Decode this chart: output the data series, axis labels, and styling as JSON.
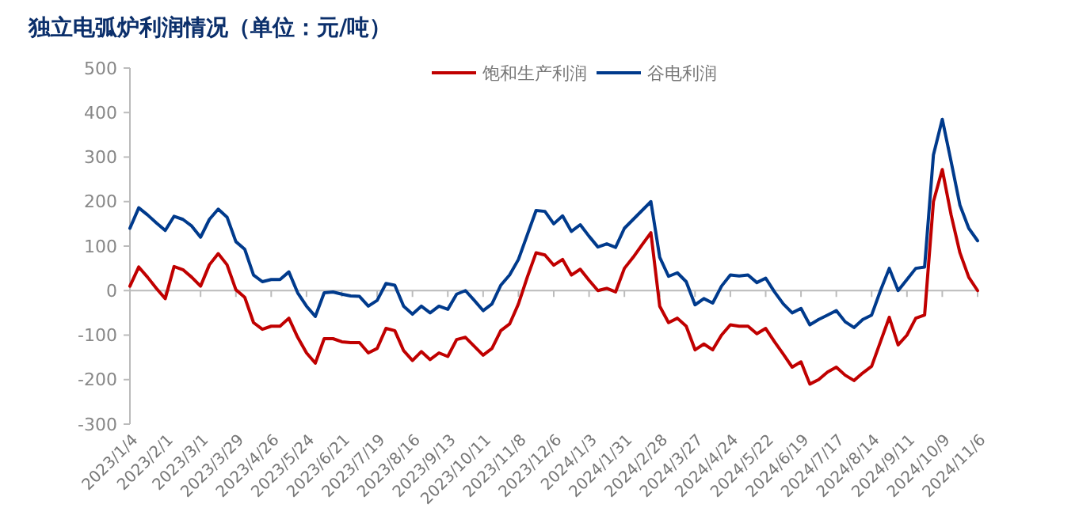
{
  "chart_data": {
    "type": "line",
    "title": "独立电弧炉利润情况（单位：元/吨）",
    "x": [
      "2023-01-04",
      "2023-01-11",
      "2023-01-18",
      "2023-01-25",
      "2023-02-01",
      "2023-02-08",
      "2023-02-15",
      "2023-02-22",
      "2023-03-01",
      "2023-03-08",
      "2023-03-15",
      "2023-03-22",
      "2023-03-29",
      "2023-04-05",
      "2023-04-12",
      "2023-04-19",
      "2023-04-26",
      "2023-05-03",
      "2023-05-10",
      "2023-05-17",
      "2023-05-24",
      "2023-05-31",
      "2023-06-07",
      "2023-06-14",
      "2023-06-21",
      "2023-06-28",
      "2023-07-05",
      "2023-07-12",
      "2023-07-19",
      "2023-07-26",
      "2023-08-02",
      "2023-08-09",
      "2023-08-16",
      "2023-08-23",
      "2023-08-30",
      "2023-09-06",
      "2023-09-13",
      "2023-09-20",
      "2023-09-27",
      "2023-10-04",
      "2023-10-11",
      "2023-10-18",
      "2023-10-25",
      "2023-11-01",
      "2023-11-08",
      "2023-11-15",
      "2023-11-22",
      "2023-11-29",
      "2023-12-06",
      "2023-12-13",
      "2023-12-20",
      "2023-12-27",
      "2024-01-03",
      "2024-01-10",
      "2024-01-17",
      "2024-01-24",
      "2024-01-31",
      "2024-02-07",
      "2024-02-14",
      "2024-02-21",
      "2024-02-28",
      "2024-03-06",
      "2024-03-13",
      "2024-03-20",
      "2024-03-27",
      "2024-04-03",
      "2024-04-10",
      "2024-04-17",
      "2024-04-24",
      "2024-05-01",
      "2024-05-08",
      "2024-05-15",
      "2024-05-22",
      "2024-05-29",
      "2024-06-05",
      "2024-06-12",
      "2024-06-19",
      "2024-06-26",
      "2024-07-03",
      "2024-07-10",
      "2024-07-17",
      "2024-07-24",
      "2024-07-31",
      "2024-08-07",
      "2024-08-14",
      "2024-08-21",
      "2024-08-28",
      "2024-09-04",
      "2024-09-11",
      "2024-09-18",
      "2024-09-25",
      "2024-10-02",
      "2024-10-09",
      "2024-10-16",
      "2024-10-23",
      "2024-10-30",
      "2024-11-06"
    ],
    "series": [
      {
        "name": "饱和生产利润",
        "color": "#c00000",
        "values": [
          10,
          53,
          30,
          5,
          -18,
          54,
          47,
          30,
          10,
          58,
          83,
          58,
          2,
          -15,
          -72,
          -87,
          -80,
          -80,
          -62,
          -105,
          -140,
          -163,
          -108,
          -108,
          -115,
          -117,
          -117,
          -140,
          -130,
          -85,
          -90,
          -135,
          -157,
          -137,
          -155,
          -140,
          -148,
          -110,
          -105,
          -125,
          -145,
          -130,
          -90,
          -75,
          -30,
          30,
          85,
          80,
          57,
          70,
          35,
          48,
          23,
          0,
          5,
          -3,
          50,
          75,
          103,
          130,
          -35,
          -72,
          -62,
          -80,
          -133,
          -120,
          -133,
          -100,
          -77,
          -80,
          -80,
          -97,
          -85,
          -115,
          -143,
          -172,
          -160,
          -210,
          -200,
          -183,
          -172,
          -190,
          -202,
          -185,
          -170,
          -115,
          -60,
          -122,
          -100,
          -62,
          -55,
          200,
          272,
          170,
          85,
          30,
          0
        ]
      },
      {
        "name": "谷电利润",
        "color": "#003a8c",
        "values": [
          140,
          186,
          170,
          152,
          135,
          167,
          160,
          145,
          120,
          160,
          183,
          165,
          110,
          93,
          35,
          20,
          25,
          25,
          42,
          -5,
          -35,
          -58,
          -5,
          -3,
          -8,
          -12,
          -13,
          -35,
          -22,
          16,
          12,
          -35,
          -53,
          -35,
          -50,
          -35,
          -42,
          -8,
          0,
          -22,
          -45,
          -30,
          12,
          35,
          70,
          125,
          180,
          178,
          150,
          168,
          133,
          148,
          122,
          98,
          105,
          97,
          140,
          160,
          180,
          200,
          75,
          32,
          40,
          20,
          -32,
          -18,
          -28,
          10,
          35,
          33,
          35,
          18,
          28,
          -3,
          -30,
          -50,
          -40,
          -77,
          -65,
          -55,
          -45,
          -70,
          -83,
          -65,
          -55,
          0,
          50,
          0,
          25,
          50,
          53,
          305,
          385,
          290,
          192,
          140,
          112
        ]
      }
    ],
    "xlim": [
      "2023-01-04",
      "2024-11-06"
    ],
    "xticks": [
      {
        "value": "2023-01-04",
        "label": "2023/1/4"
      },
      {
        "value": "2023-02-01",
        "label": "2023/2/1"
      },
      {
        "value": "2023-03-01",
        "label": "2023/3/1"
      },
      {
        "value": "2023-03-29",
        "label": "2023/3/29"
      },
      {
        "value": "2023-04-26",
        "label": "2023/4/26"
      },
      {
        "value": "2023-05-24",
        "label": "2023/5/24"
      },
      {
        "value": "2023-06-21",
        "label": "2023/6/21"
      },
      {
        "value": "2023-07-19",
        "label": "2023/7/19"
      },
      {
        "value": "2023-08-16",
        "label": "2023/8/16"
      },
      {
        "value": "2023-09-13",
        "label": "2023/9/13"
      },
      {
        "value": "2023-10-11",
        "label": "2023/10/11"
      },
      {
        "value": "2023-11-08",
        "label": "2023/11/8"
      },
      {
        "value": "2023-12-06",
        "label": "2023/12/6"
      },
      {
        "value": "2024-01-03",
        "label": "2024/1/3"
      },
      {
        "value": "2024-01-31",
        "label": "2024/1/31"
      },
      {
        "value": "2024-02-28",
        "label": "2024/2/28"
      },
      {
        "value": "2024-03-27",
        "label": "2024/3/27"
      },
      {
        "value": "2024-04-24",
        "label": "2024/4/24"
      },
      {
        "value": "2024-05-22",
        "label": "2024/5/22"
      },
      {
        "value": "2024-06-19",
        "label": "2024/6/19"
      },
      {
        "value": "2024-07-17",
        "label": "2024/7/17"
      },
      {
        "value": "2024-08-14",
        "label": "2024/8/14"
      },
      {
        "value": "2024-09-11",
        "label": "2024/9/11"
      },
      {
        "value": "2024-10-09",
        "label": "2024/10/9"
      },
      {
        "value": "2024-11-06",
        "label": "2024/11/6"
      }
    ],
    "ylim": [
      -300,
      500
    ],
    "yticks": [
      -300,
      -200,
      -100,
      0,
      100,
      200,
      300,
      400,
      500
    ],
    "ref_lines": [
      {
        "axis": "y",
        "value": 0,
        "color": "#bbbbbb"
      }
    ],
    "legend": "top",
    "grid": false,
    "marker": "none",
    "line_style": "solid"
  }
}
